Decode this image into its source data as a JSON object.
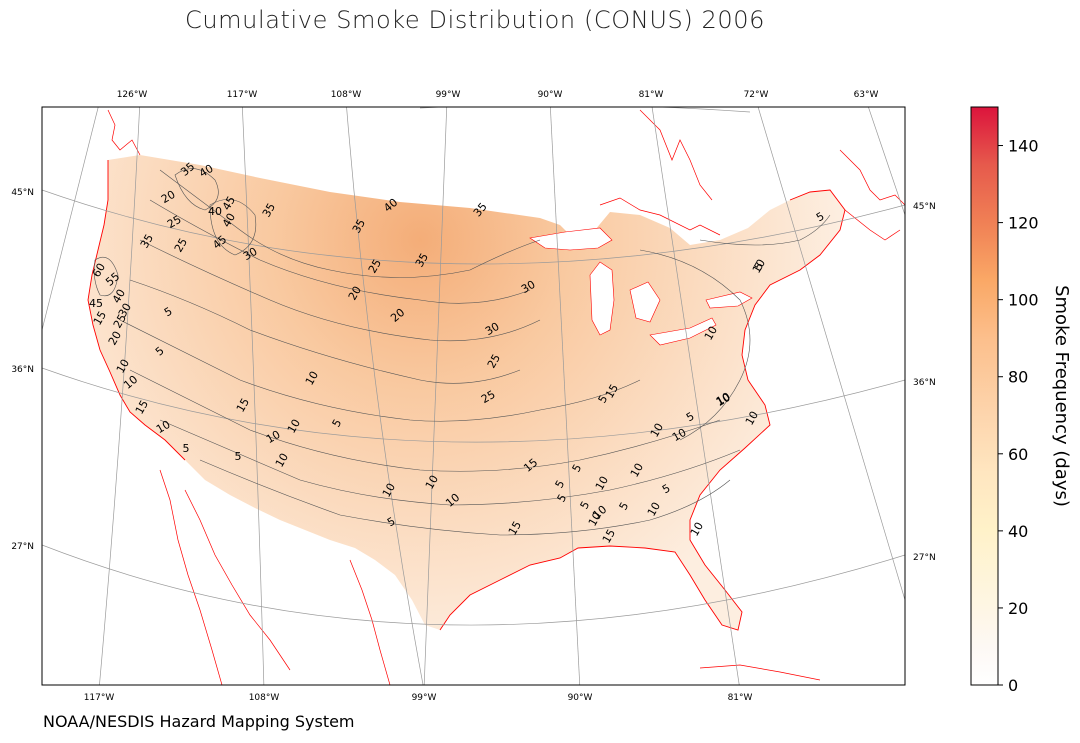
{
  "title": "Cumulative Smoke Distribution (CONUS) 2006",
  "credit": "NOAA/NESDIS Hazard Mapping System",
  "colors": {
    "coastline": "#ff0000",
    "graticule": "#9a9a9a",
    "contour": "#555555",
    "land_low": "#fdeee0",
    "land_high": "#f4ad78"
  },
  "top_lon_labels": [
    "126°W",
    "117°W",
    "108°W",
    "99°W",
    "90°W",
    "81°W",
    "72°W",
    "63°W"
  ],
  "bottom_lon_labels": [
    "117°W",
    "108°W",
    "99°W",
    "90°W",
    "81°W"
  ],
  "left_lat_labels": [
    "45°N",
    "36°N",
    "27°N"
  ],
  "right_lat_labels": [
    "45°N",
    "36°N",
    "27°N"
  ],
  "colorbar": {
    "label": "Smoke Frequency (days)",
    "min": 0,
    "max": 150,
    "ticks": [
      "0",
      "20",
      "40",
      "60",
      "80",
      "100",
      "120",
      "140"
    ],
    "stops": [
      {
        "value": 0,
        "color": "#ffffff"
      },
      {
        "value": 10,
        "color": "#fdf8f4"
      },
      {
        "value": 20,
        "color": "#fef6e4"
      },
      {
        "value": 40,
        "color": "#fff2c9"
      },
      {
        "value": 55,
        "color": "#ffe6c0"
      },
      {
        "value": 70,
        "color": "#fdd5ad"
      },
      {
        "value": 90,
        "color": "#fcbf8c"
      },
      {
        "value": 105,
        "color": "#faa866"
      },
      {
        "value": 120,
        "color": "#f08055"
      },
      {
        "value": 135,
        "color": "#e65a4c"
      },
      {
        "value": 150,
        "color": "#dc143c"
      }
    ]
  },
  "contour_labels": [
    "35",
    "40",
    "20",
    "45",
    "40",
    "40",
    "35",
    "40",
    "35",
    "25",
    "45",
    "35",
    "25",
    "35",
    "30",
    "60",
    "55",
    "45",
    "15",
    "40",
    "25",
    "30",
    "20",
    "25",
    "20",
    "35",
    "30",
    "5",
    "20",
    "30",
    "5",
    "10",
    "10",
    "15",
    "10",
    "10",
    "15",
    "5",
    "25",
    "10",
    "25",
    "15",
    "5",
    "10",
    "10",
    "5",
    "5",
    "15",
    "10",
    "10",
    "10",
    "5",
    "5",
    "5",
    "10",
    "10",
    "10",
    "5",
    "10",
    "5",
    "15",
    "10",
    "5",
    "5",
    "10",
    "10",
    "10",
    "5",
    "5",
    "5",
    "10",
    "10",
    "15",
    "10",
    "10",
    "10"
  ]
}
